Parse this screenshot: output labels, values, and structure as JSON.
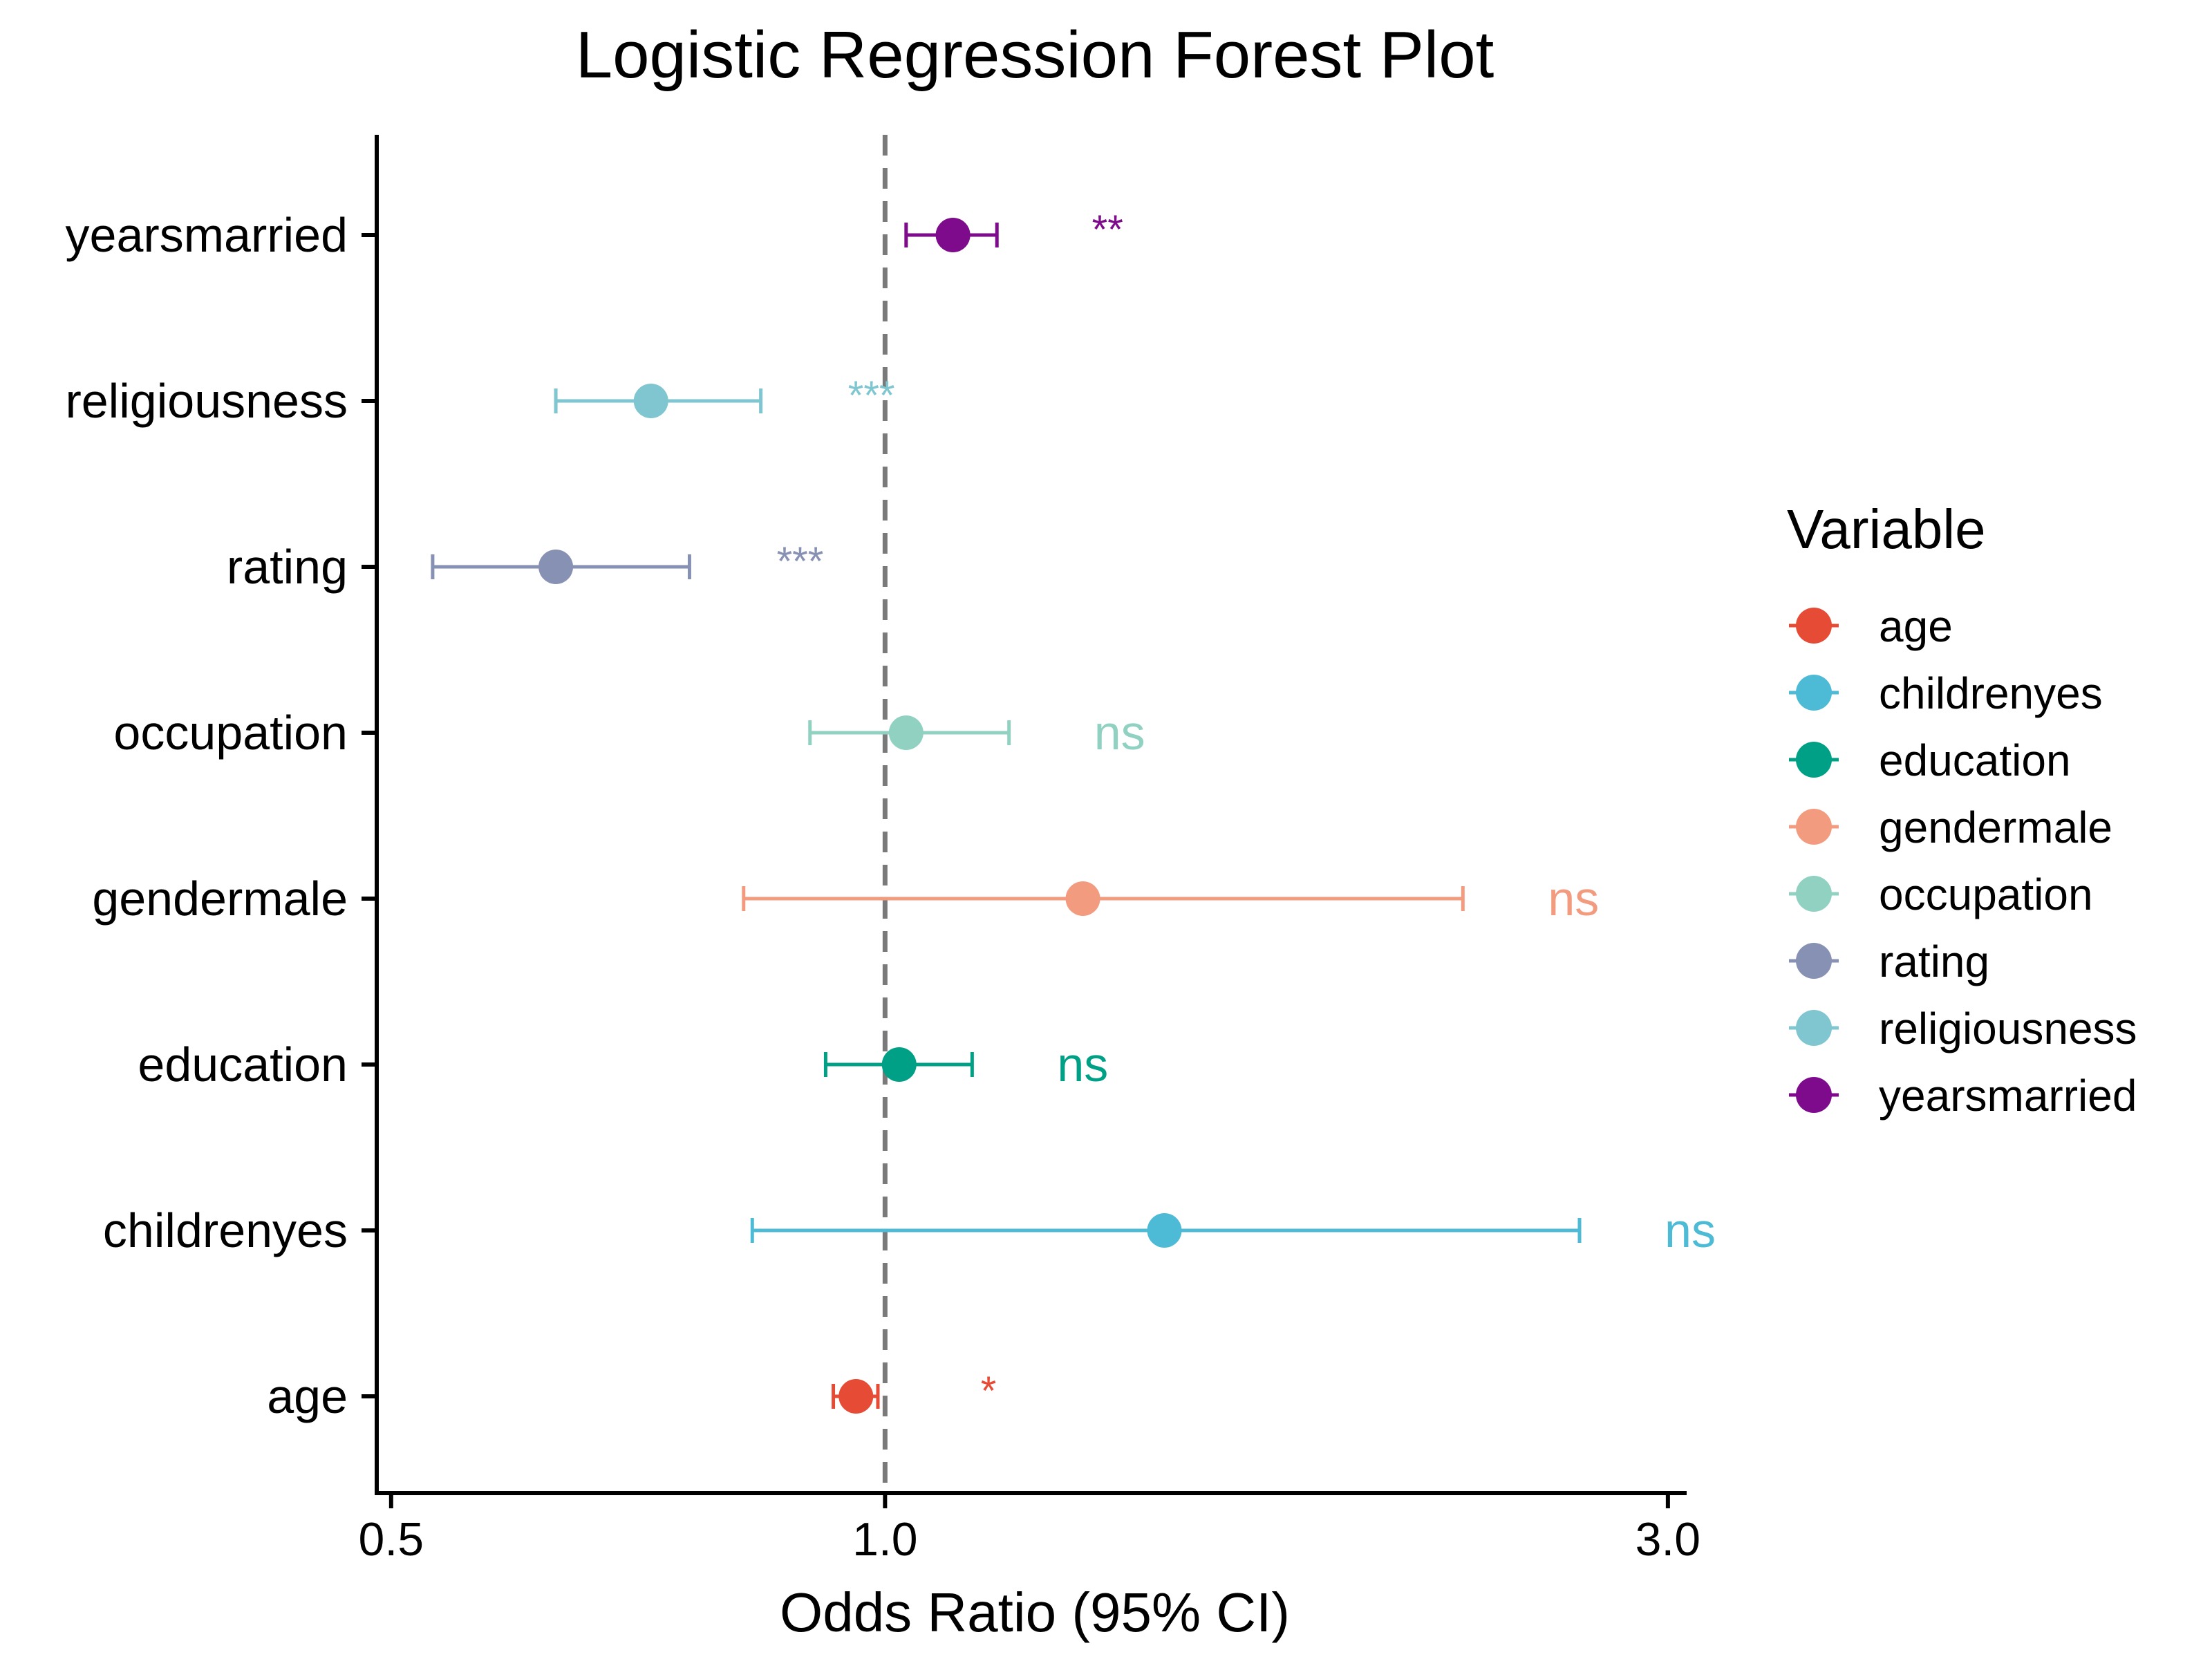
{
  "chart_data": {
    "type": "scatter",
    "title": "Logistic Regression Forest Plot",
    "xlabel": "Odds Ratio (95% CI)",
    "ylabel": "",
    "x_scale": "log",
    "xlim": [
      0.49,
      3.08
    ],
    "x_ticks": [
      0.5,
      1.0,
      3.0
    ],
    "x_tick_labels": [
      "0.5",
      "1.0",
      "3.0"
    ],
    "reference_line": 1.0,
    "grid": false,
    "legend_title": "Variable",
    "legend_position": "right",
    "categories": [
      "yearsmarried",
      "religiousness",
      "rating",
      "occupation",
      "gendermale",
      "education",
      "childrenyes",
      "age"
    ],
    "legend_entries": [
      "age",
      "childrenyes",
      "education",
      "gendermale",
      "occupation",
      "rating",
      "religiousness",
      "yearsmarried"
    ],
    "series": [
      {
        "variable": "yearsmarried",
        "or": 1.1,
        "ci_low": 1.03,
        "ci_high": 1.17,
        "signif": "**",
        "color": "#7E0B8B"
      },
      {
        "variable": "religiousness",
        "or": 0.72,
        "ci_low": 0.63,
        "ci_high": 0.84,
        "signif": "***",
        "color": "#7FC6D0"
      },
      {
        "variable": "rating",
        "or": 0.63,
        "ci_low": 0.53,
        "ci_high": 0.76,
        "signif": "***",
        "color": "#8791B3"
      },
      {
        "variable": "occupation",
        "or": 1.03,
        "ci_low": 0.9,
        "ci_high": 1.19,
        "signif": "ns",
        "color": "#91D1C2"
      },
      {
        "variable": "gendermale",
        "or": 1.32,
        "ci_low": 0.82,
        "ci_high": 2.25,
        "signif": "ns",
        "color": "#F39B7F"
      },
      {
        "variable": "education",
        "or": 1.02,
        "ci_low": 0.92,
        "ci_high": 1.13,
        "signif": "ns",
        "color": "#00A087"
      },
      {
        "variable": "childrenyes",
        "or": 1.48,
        "ci_low": 0.83,
        "ci_high": 2.65,
        "signif": "ns",
        "color": "#4DBBD5"
      },
      {
        "variable": "age",
        "or": 0.96,
        "ci_low": 0.93,
        "ci_high": 0.99,
        "signif": "*",
        "color": "#E64B35"
      }
    ]
  }
}
